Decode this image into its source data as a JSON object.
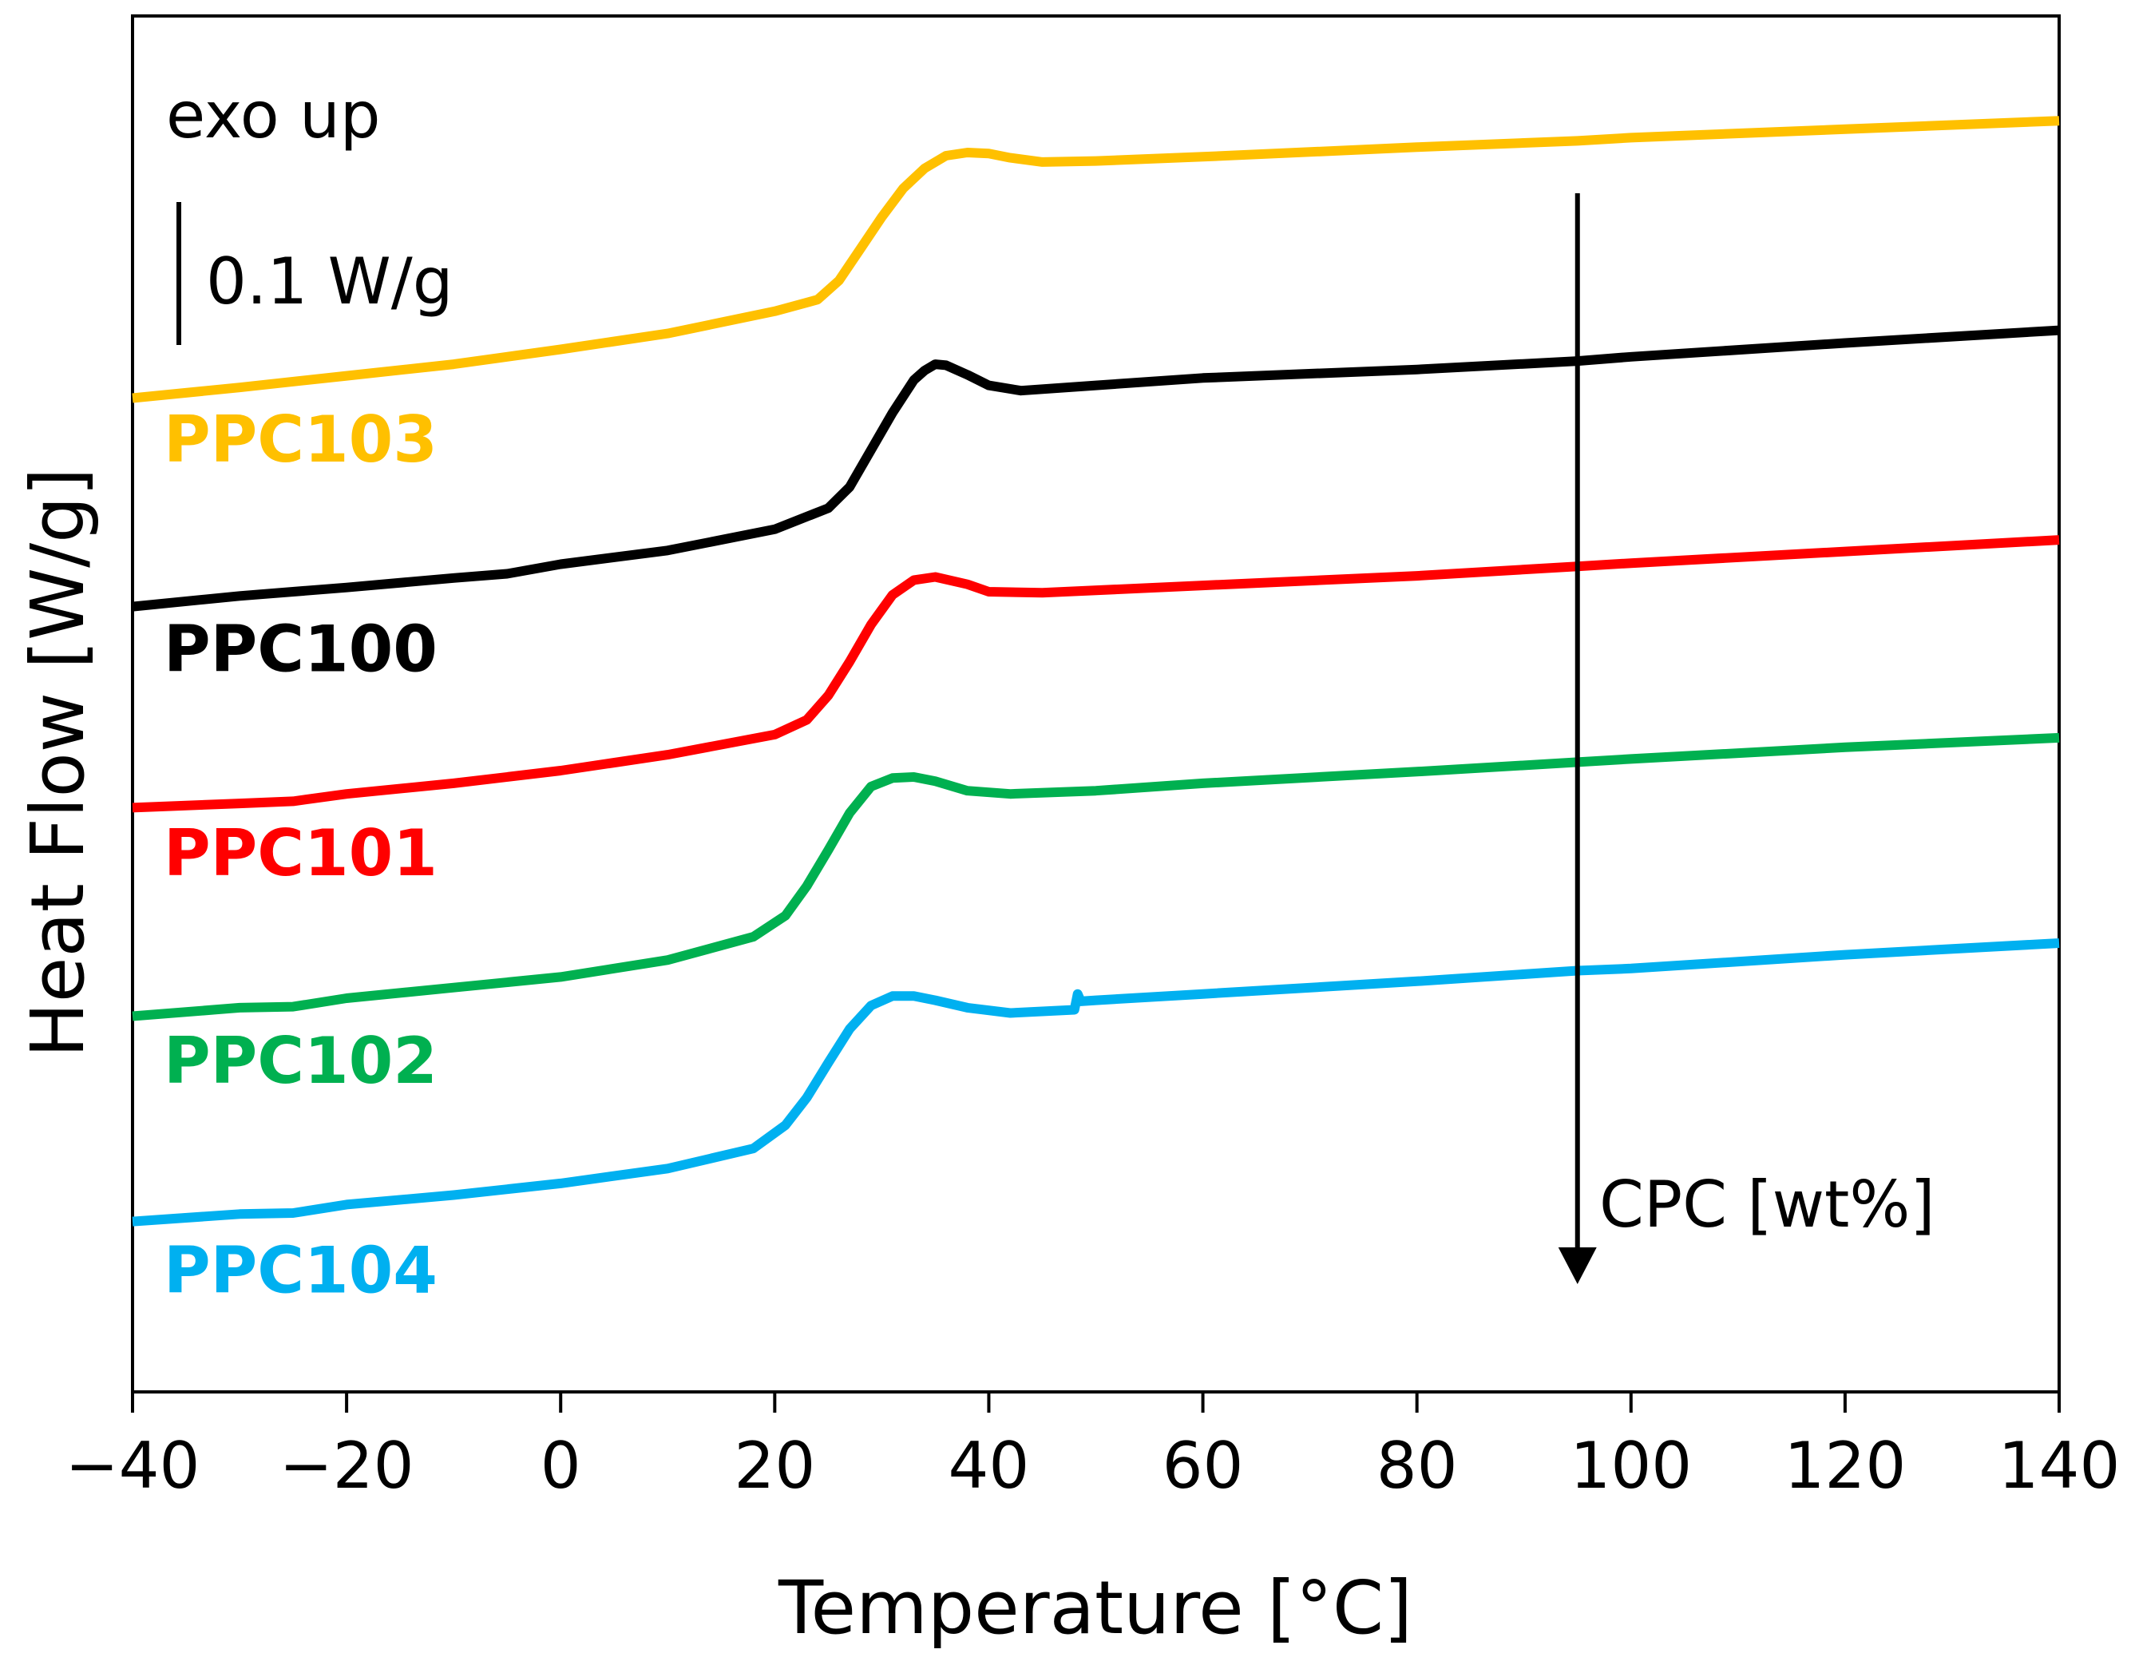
{
  "chart_data": {
    "type": "line",
    "title": "",
    "xlabel": "Temperature [°C]",
    "ylabel": "Heat Flow [W/g]",
    "xlim": [
      -40,
      140
    ],
    "xticks": [
      -40,
      -20,
      0,
      20,
      40,
      60,
      80,
      100,
      120,
      140
    ],
    "xtick_labels": [
      "−40",
      "−20",
      "0",
      "20",
      "40",
      "60",
      "80",
      "100",
      "120",
      "140"
    ],
    "ylim": [
      -0.06,
      1.24
    ],
    "ytick_labels": [],
    "scale_bar": {
      "label": "0.1 W/g",
      "value": 0.1
    },
    "exo_label": "exo up",
    "arrow_label": "CPC [wt%]",
    "arrow_x": 95,
    "series": [
      {
        "name": "PPC103",
        "color": "#FFC000",
        "points": [
          [
            -40,
            0.879
          ],
          [
            -30,
            0.889
          ],
          [
            -20,
            0.9
          ],
          [
            -10,
            0.911
          ],
          [
            0,
            0.925
          ],
          [
            10,
            0.94
          ],
          [
            20,
            0.961
          ],
          [
            24,
            0.972
          ],
          [
            26,
            0.99
          ],
          [
            28,
            1.02
          ],
          [
            30,
            1.05
          ],
          [
            32,
            1.077
          ],
          [
            34,
            1.096
          ],
          [
            36,
            1.108
          ],
          [
            38,
            1.111
          ],
          [
            40,
            1.11
          ],
          [
            42,
            1.106
          ],
          [
            45,
            1.102
          ],
          [
            50,
            1.103
          ],
          [
            60,
            1.107
          ],
          [
            80,
            1.116
          ],
          [
            95,
            1.122
          ],
          [
            100,
            1.125
          ],
          [
            120,
            1.133
          ],
          [
            140,
            1.141
          ]
        ]
      },
      {
        "name": "PPC100",
        "color": "#000000",
        "points": [
          [
            -40,
            0.682
          ],
          [
            -30,
            0.692
          ],
          [
            -20,
            0.7
          ],
          [
            -10,
            0.709
          ],
          [
            -5,
            0.713
          ],
          [
            0,
            0.722
          ],
          [
            10,
            0.735
          ],
          [
            20,
            0.755
          ],
          [
            25,
            0.775
          ],
          [
            27,
            0.795
          ],
          [
            29,
            0.83
          ],
          [
            31,
            0.865
          ],
          [
            33,
            0.896
          ],
          [
            34,
            0.905
          ],
          [
            35,
            0.911
          ],
          [
            36,
            0.91
          ],
          [
            38,
            0.901
          ],
          [
            40,
            0.891
          ],
          [
            43,
            0.886
          ],
          [
            50,
            0.891
          ],
          [
            60,
            0.898
          ],
          [
            80,
            0.906
          ],
          [
            95,
            0.914
          ],
          [
            100,
            0.918
          ],
          [
            120,
            0.931
          ],
          [
            140,
            0.943
          ]
        ]
      },
      {
        "name": "PPC101",
        "color": "#FF0000",
        "points": [
          [
            -40,
            0.492
          ],
          [
            -30,
            0.496
          ],
          [
            -25,
            0.498
          ],
          [
            -20,
            0.505
          ],
          [
            -10,
            0.515
          ],
          [
            0,
            0.527
          ],
          [
            10,
            0.542
          ],
          [
            20,
            0.561
          ],
          [
            23,
            0.575
          ],
          [
            25,
            0.598
          ],
          [
            27,
            0.63
          ],
          [
            29,
            0.665
          ],
          [
            31,
            0.693
          ],
          [
            33,
            0.707
          ],
          [
            35,
            0.71
          ],
          [
            38,
            0.703
          ],
          [
            40,
            0.696
          ],
          [
            45,
            0.695
          ],
          [
            60,
            0.702
          ],
          [
            80,
            0.711
          ],
          [
            95,
            0.72
          ],
          [
            100,
            0.723
          ],
          [
            120,
            0.734
          ],
          [
            140,
            0.745
          ]
        ]
      },
      {
        "name": "PPC102",
        "color": "#00B050",
        "points": [
          [
            -40,
            0.295
          ],
          [
            -30,
            0.303
          ],
          [
            -25,
            0.304
          ],
          [
            -20,
            0.312
          ],
          [
            -10,
            0.322
          ],
          [
            0,
            0.332
          ],
          [
            10,
            0.348
          ],
          [
            18,
            0.37
          ],
          [
            21,
            0.39
          ],
          [
            23,
            0.418
          ],
          [
            25,
            0.452
          ],
          [
            27,
            0.487
          ],
          [
            29,
            0.512
          ],
          [
            31,
            0.52
          ],
          [
            33,
            0.521
          ],
          [
            35,
            0.517
          ],
          [
            38,
            0.508
          ],
          [
            42,
            0.505
          ],
          [
            50,
            0.508
          ],
          [
            60,
            0.515
          ],
          [
            80,
            0.526
          ],
          [
            95,
            0.535
          ],
          [
            100,
            0.538
          ],
          [
            120,
            0.549
          ],
          [
            140,
            0.558
          ]
        ]
      },
      {
        "name": "PPC104",
        "color": "#00B0F0",
        "points": [
          [
            -40,
            0.101
          ],
          [
            -30,
            0.108
          ],
          [
            -25,
            0.109
          ],
          [
            -20,
            0.117
          ],
          [
            -10,
            0.126
          ],
          [
            0,
            0.137
          ],
          [
            10,
            0.151
          ],
          [
            18,
            0.17
          ],
          [
            21,
            0.192
          ],
          [
            23,
            0.218
          ],
          [
            25,
            0.251
          ],
          [
            27,
            0.283
          ],
          [
            29,
            0.305
          ],
          [
            31,
            0.314
          ],
          [
            33,
            0.314
          ],
          [
            35,
            0.31
          ],
          [
            38,
            0.303
          ],
          [
            42,
            0.298
          ],
          [
            48,
            0.301
          ],
          [
            48.3,
            0.316
          ],
          [
            48.6,
            0.309
          ],
          [
            50,
            0.31
          ],
          [
            60,
            0.316
          ],
          [
            80,
            0.328
          ],
          [
            95,
            0.338
          ],
          [
            100,
            0.34
          ],
          [
            120,
            0.353
          ],
          [
            140,
            0.364
          ]
        ]
      }
    ],
    "series_labels": [
      {
        "name": "PPC103",
        "y": 0.819
      },
      {
        "name": "PPC100",
        "y": 0.621
      },
      {
        "name": "PPC101",
        "y": 0.428
      },
      {
        "name": "PPC102",
        "y": 0.232
      },
      {
        "name": "PPC104",
        "y": 0.034
      }
    ]
  }
}
